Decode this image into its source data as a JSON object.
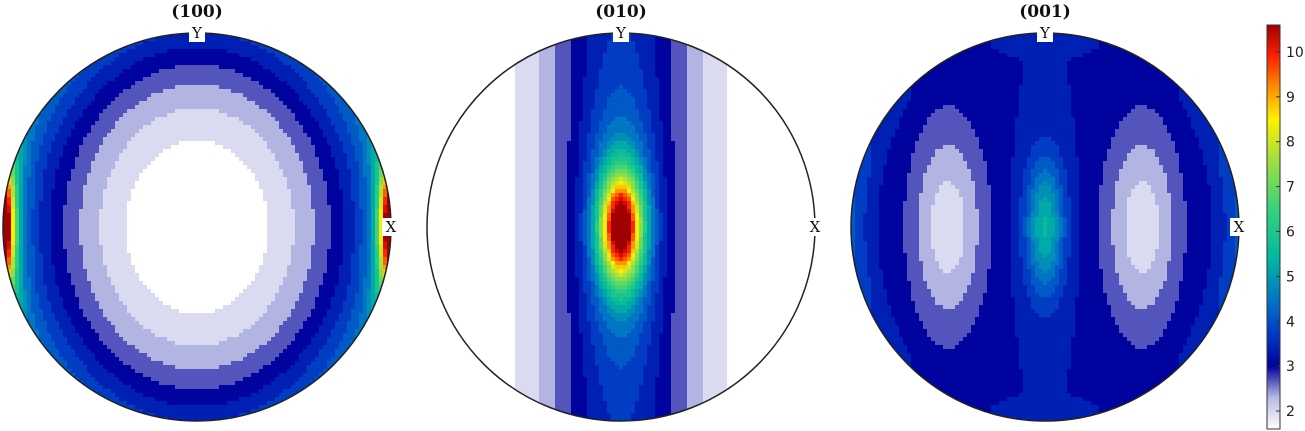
{
  "chart_data": {
    "type": "heatmap",
    "description_kind": "pole figures",
    "panels": [
      {
        "title": "(100)",
        "y_label": "Y",
        "x_label": "X",
        "min_value": 1.6,
        "max_value": 10.5,
        "peak_locations": [
          "left edge center",
          "right edge center"
        ],
        "low_region": "center (ellipse)"
      },
      {
        "title": "(010)",
        "y_label": "Y",
        "x_label": "X",
        "min_value": 1.6,
        "max_value": 10.5,
        "peak_locations": [
          "center"
        ],
        "low_region": "left and right sides"
      },
      {
        "title": "(001)",
        "y_label": "Y",
        "x_label": "X",
        "min_value": 2.0,
        "max_value": 5.8,
        "peak_locations": [
          "center"
        ],
        "low_region": "two lobes left and right of center"
      }
    ],
    "colorbar": {
      "ticks": [
        2,
        3,
        4,
        5,
        6,
        7,
        8,
        9,
        10
      ],
      "range": [
        1.6,
        10.6
      ],
      "colormap": [
        [
          1.6,
          "#ffffff"
        ],
        [
          2.3,
          "#b7b9e4"
        ],
        [
          3.0,
          "#00009a"
        ],
        [
          3.6,
          "#0030c0"
        ],
        [
          4.4,
          "#0070c8"
        ],
        [
          5.4,
          "#00b8a0"
        ],
        [
          6.4,
          "#30d080"
        ],
        [
          7.6,
          "#a0e040"
        ],
        [
          8.5,
          "#fff000"
        ],
        [
          9.2,
          "#ff9000"
        ],
        [
          9.9,
          "#ff2000"
        ],
        [
          10.6,
          "#a00000"
        ]
      ]
    }
  }
}
